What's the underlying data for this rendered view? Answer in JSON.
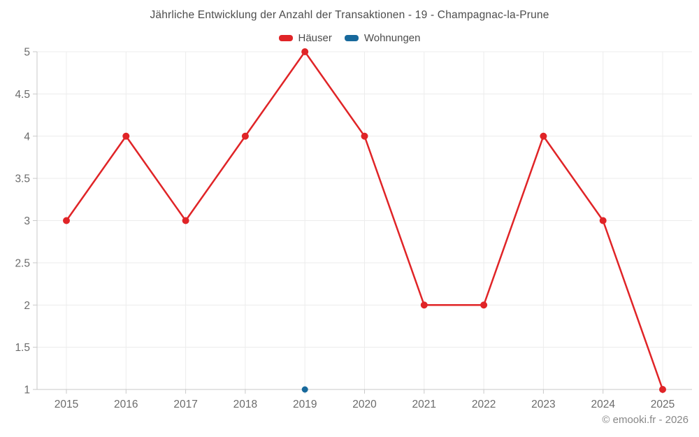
{
  "title": "Jährliche Entwicklung der Anzahl der Transaktionen - 19 - Champagnac-la-Prune",
  "legend": [
    {
      "label": "Häuser",
      "color": "#e02427"
    },
    {
      "label": "Wohnungen",
      "color": "#17699c"
    }
  ],
  "footer": "© emooki.fr - 2026",
  "colors": {
    "haeuser": "#e02427",
    "wohnungen": "#17699c",
    "grid": "#ececec",
    "axis": "#c9c9c9",
    "tick_label": "#6b6b6b"
  },
  "chart_data": {
    "type": "line",
    "title": "Jährliche Entwicklung der Anzahl der Transaktionen - 19 - Champagnac-la-Prune",
    "categories": [
      "2015",
      "2016",
      "2017",
      "2018",
      "2019",
      "2020",
      "2021",
      "2022",
      "2023",
      "2024",
      "2025"
    ],
    "series": [
      {
        "name": "Häuser",
        "color": "#e02427",
        "values": [
          3,
          4,
          3,
          4,
          5,
          4,
          2,
          2,
          4,
          3,
          1
        ]
      },
      {
        "name": "Wohnungen",
        "color": "#17699c",
        "values": [
          null,
          null,
          null,
          null,
          1,
          null,
          null,
          null,
          null,
          null,
          null
        ]
      }
    ],
    "xlabel": "",
    "ylabel": "",
    "ylim": [
      1,
      5
    ],
    "ytick_step": 0.5,
    "ytick_labels": [
      "1",
      "1.5",
      "2",
      "2.5",
      "3",
      "3.5",
      "4",
      "4.5",
      "5"
    ],
    "grid": true,
    "legend_position": "top"
  }
}
